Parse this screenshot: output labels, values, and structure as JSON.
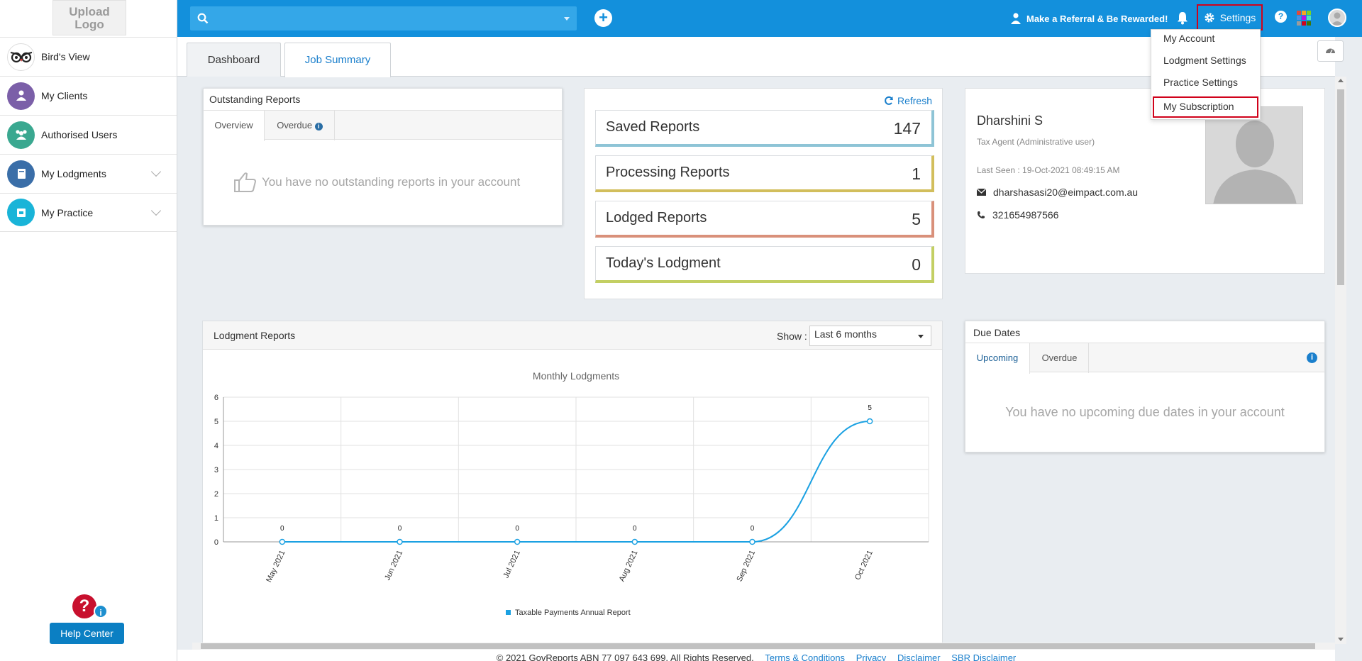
{
  "logo": {
    "line1": "Upload",
    "line2": "Logo"
  },
  "sidebar": {
    "items": [
      {
        "label": "Bird's View",
        "icon": "owl-icon",
        "color": "#ffffff"
      },
      {
        "label": "My Clients",
        "icon": "user-icon",
        "color": "#7b5fa8"
      },
      {
        "label": "Authorised Users",
        "icon": "users-icon",
        "color": "#3aa890"
      },
      {
        "label": "My Lodgments",
        "icon": "book-icon",
        "color": "#3a6ea8"
      },
      {
        "label": "My Practice",
        "icon": "briefcase-icon",
        "color": "#19b4d8"
      }
    ],
    "help_button": "Help Center"
  },
  "topbar": {
    "search_placeholder": "",
    "referral": "Make a Referral & Be Rewarded!",
    "settings": "Settings",
    "brand_color": "#1390dc"
  },
  "settings_menu": {
    "items": [
      "My Account",
      "Lodgment Settings",
      "Practice Settings",
      "My Subscription"
    ]
  },
  "tabs": {
    "dashboard": "Dashboard",
    "job_summary": "Job Summary"
  },
  "outstanding": {
    "title": "Outstanding Reports",
    "tab_overview": "Overview",
    "tab_overdue": "Overdue",
    "empty": "You have no outstanding reports in your account"
  },
  "counts": {
    "refresh": "Refresh",
    "cards": [
      {
        "label": "Saved Reports",
        "value": "147",
        "color": "#8ec4d6"
      },
      {
        "label": "Processing Reports",
        "value": "1",
        "color": "#d2be5c"
      },
      {
        "label": "Lodged Reports",
        "value": "5",
        "color": "#d9907a"
      },
      {
        "label": "Today's Lodgment",
        "value": "0",
        "color": "#c3cf63"
      }
    ]
  },
  "profile": {
    "name": "Dharshini S",
    "role": "Tax Agent (Administrative user)",
    "last_seen": "Last Seen : 19-Oct-2021 08:49:15 AM",
    "email": "dharshasasi20@eimpact.com.au",
    "phone": "321654987566"
  },
  "lodgments": {
    "title": "Lodgment Reports",
    "show_label": "Show :",
    "show_value": "Last 6 months"
  },
  "chart_data": {
    "type": "line",
    "title": "Monthly Lodgments",
    "categories": [
      "May 2021",
      "Jun 2021",
      "Jul 2021",
      "Aug 2021",
      "Sep 2021",
      "Oct 2021"
    ],
    "series": [
      {
        "name": "Taxable Payments Annual Report",
        "values": [
          0,
          0,
          0,
          0,
          0,
          5
        ],
        "color": "#1ba1e2"
      }
    ],
    "ylim": [
      0,
      6
    ],
    "yticks": [
      0,
      1,
      2,
      3,
      4,
      5,
      6
    ],
    "grid": true,
    "legend": "bottom"
  },
  "due": {
    "title": "Due Dates",
    "tab_upcoming": "Upcoming",
    "tab_overdue": "Overdue",
    "empty": "You have no upcoming due dates in your account"
  },
  "footer": {
    "copyright": "© 2021 GovReports ABN 77 097 643 699. All Rights Reserved.",
    "links": [
      "Terms & Conditions",
      "Privacy",
      "Disclaimer",
      "SBR Disclaimer"
    ]
  }
}
